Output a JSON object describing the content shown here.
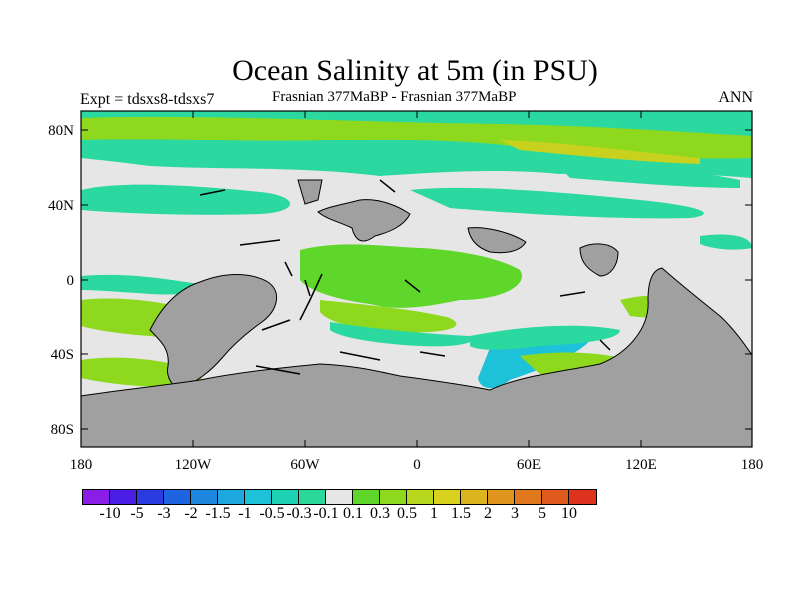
{
  "title": "Ocean Salinity at 5m (in PSU)",
  "subtitle_left": "Expt = tdsxs8-tdsxs7",
  "subtitle_center": "Frasnian 377MaBP - Frasnian 377MaBP",
  "subtitle_right": "ANN",
  "y_axis": {
    "ticks": [
      "80N",
      "40N",
      "0",
      "40S",
      "80S"
    ]
  },
  "x_axis": {
    "ticks": [
      "180",
      "120W",
      "60W",
      "0",
      "60E",
      "120E",
      "180"
    ]
  },
  "colorbar": {
    "labels": [
      "-10",
      "-5",
      "-3",
      "-2",
      "-1.5",
      "-1",
      "-0.5",
      "-0.3",
      "-0.1",
      "0.1",
      "0.3",
      "0.5",
      "1",
      "1.5",
      "2",
      "3",
      "5",
      "10"
    ],
    "colors": [
      "#8a1ee6",
      "#4b1ee6",
      "#2a3be0",
      "#1e64e0",
      "#1e88e0",
      "#1ea8e0",
      "#1ec2d8",
      "#1ed2b4",
      "#2ad89a",
      "#e6e6e6",
      "#5ed62a",
      "#8ed81e",
      "#b8d81e",
      "#d8d21e",
      "#dcb41e",
      "#e0961e",
      "#e0781e",
      "#e05a1e",
      "#dc321e"
    ]
  },
  "colors": {
    "land": "#a0a0a0",
    "ocean_neutral": "#e6e6e6",
    "teal": "#2ad8a0",
    "light_green": "#8ed81e",
    "green": "#5ed62a",
    "yellow_green": "#c8d21e",
    "cyan": "#1ec2d8",
    "blue": "#1e88e0"
  }
}
